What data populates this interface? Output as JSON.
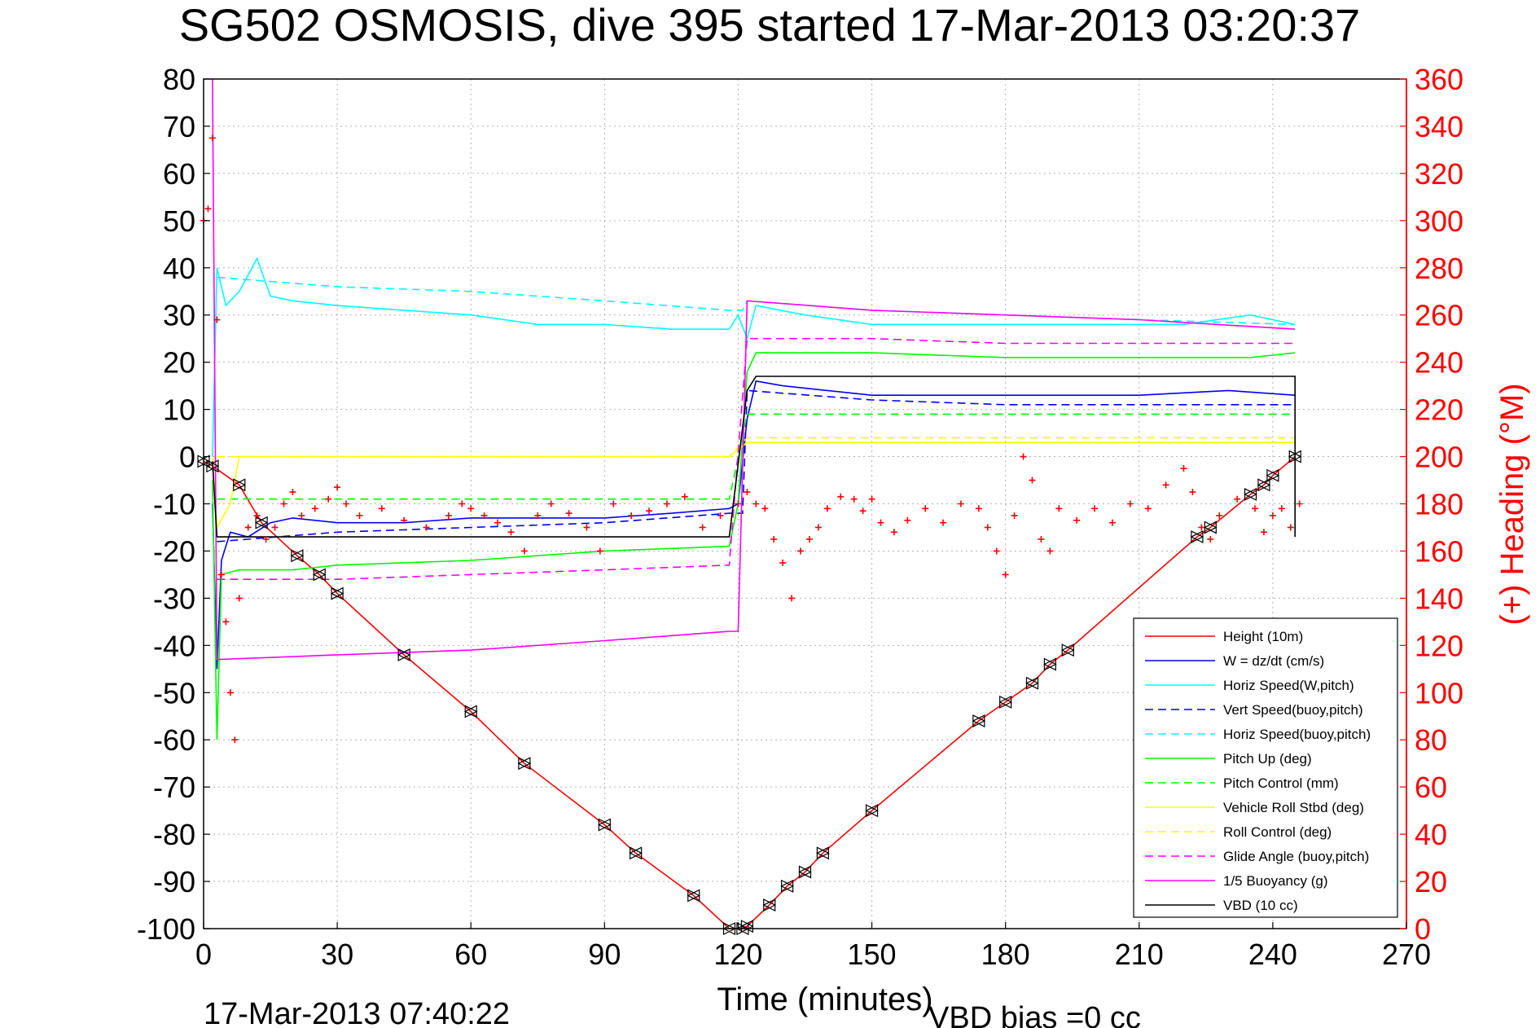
{
  "chart_data": {
    "type": "line",
    "title": "SG502 OSMOSIS, dive 395 started 17-Mar-2013 03:20:37",
    "xlabel": "Time (minutes)",
    "ylabel_right": "(+) Heading (°M)",
    "footer_left": "17-Mar-2013 07:40:22",
    "footer_right": "VBD bias =0 cc",
    "xlim": [
      0,
      270
    ],
    "ylim": [
      -100,
      80
    ],
    "ylim_right": [
      0,
      360
    ],
    "xticks": [
      "0",
      "30",
      "60",
      "90",
      "120",
      "150",
      "180",
      "210",
      "240",
      "270"
    ],
    "yticks": [
      "80",
      "70",
      "60",
      "50",
      "40",
      "30",
      "20",
      "10",
      "0",
      "-10",
      "-20",
      "-30",
      "-40",
      "-50",
      "-60",
      "-70",
      "-80",
      "-90",
      "-100"
    ],
    "yticks_right": [
      "360",
      "340",
      "320",
      "300",
      "280",
      "260",
      "240",
      "220",
      "200",
      "180",
      "160",
      "140",
      "120",
      "100",
      "80",
      "60",
      "40",
      "20",
      "0"
    ],
    "grid": true,
    "legend_position": "bottom-right",
    "legend": [
      {
        "label": "Height (10m)",
        "color": "#ff0000",
        "dash": false
      },
      {
        "label": "W = dz/dt (cm/s)",
        "color": "#0000ff",
        "dash": false
      },
      {
        "label": "Horiz Speed(W,pitch)",
        "color": "#00ffff",
        "dash": false
      },
      {
        "label": "Vert Speed(buoy,pitch)",
        "color": "#0000ff",
        "dash": true
      },
      {
        "label": "Horiz Speed(buoy,pitch)",
        "color": "#00ffff",
        "dash": true
      },
      {
        "label": "Pitch Up (deg)",
        "color": "#00ff00",
        "dash": false
      },
      {
        "label": "Pitch Control (mm)",
        "color": "#00ff00",
        "dash": true
      },
      {
        "label": "Vehicle Roll Stbd (deg)",
        "color": "#ffff00",
        "dash": false
      },
      {
        "label": "Roll Control (deg)",
        "color": "#ffff00",
        "dash": true
      },
      {
        "label": "Glide Angle (buoy,pitch)",
        "color": "#ff00ff",
        "dash": true
      },
      {
        "label": "1/5 Buoyancy (g)",
        "color": "#ff00ff",
        "dash": false
      },
      {
        "label": "VBD (10 cc)",
        "color": "#000000",
        "dash": false
      }
    ],
    "series": [
      {
        "name": "Height (10m)",
        "color": "#ff0000",
        "points": [
          [
            0,
            -1
          ],
          [
            2,
            -2
          ],
          [
            8,
            -6
          ],
          [
            13,
            -14
          ],
          [
            21,
            -21
          ],
          [
            26,
            -25
          ],
          [
            30,
            -29
          ],
          [
            45,
            -42
          ],
          [
            60,
            -54
          ],
          [
            72,
            -65
          ],
          [
            90,
            -78
          ],
          [
            97,
            -84
          ],
          [
            110,
            -93
          ],
          [
            118,
            -100
          ],
          [
            121,
            -100
          ],
          [
            122,
            -99.5
          ],
          [
            127,
            -95
          ],
          [
            131,
            -91
          ],
          [
            135,
            -88
          ],
          [
            139,
            -84
          ],
          [
            150,
            -75
          ],
          [
            174,
            -56
          ],
          [
            180,
            -52
          ],
          [
            186,
            -48
          ],
          [
            190,
            -44
          ],
          [
            194,
            -41
          ],
          [
            223,
            -17
          ],
          [
            226,
            -15
          ],
          [
            235,
            -8
          ],
          [
            238,
            -6
          ],
          [
            240,
            -4
          ],
          [
            245,
            0
          ]
        ]
      },
      {
        "name": "W = dz/dt (cm/s)",
        "color": "#0000ff",
        "points": [
          [
            2,
            -10
          ],
          [
            3,
            -45
          ],
          [
            4,
            -22
          ],
          [
            6,
            -16
          ],
          [
            10,
            -17
          ],
          [
            15,
            -14
          ],
          [
            20,
            -13
          ],
          [
            30,
            -14
          ],
          [
            45,
            -14
          ],
          [
            60,
            -13
          ],
          [
            75,
            -13
          ],
          [
            90,
            -13
          ],
          [
            105,
            -12
          ],
          [
            118,
            -11
          ],
          [
            120,
            -10
          ],
          [
            122,
            8
          ],
          [
            124,
            16
          ],
          [
            130,
            15
          ],
          [
            150,
            13
          ],
          [
            180,
            13
          ],
          [
            210,
            13
          ],
          [
            230,
            14
          ],
          [
            245,
            13
          ]
        ]
      },
      {
        "name": "Horiz Speed(W,pitch)",
        "color": "#00ffff",
        "points": [
          [
            2,
            0
          ],
          [
            3,
            40
          ],
          [
            5,
            32
          ],
          [
            8,
            35
          ],
          [
            12,
            42
          ],
          [
            15,
            34
          ],
          [
            20,
            33
          ],
          [
            30,
            32
          ],
          [
            45,
            31
          ],
          [
            60,
            30
          ],
          [
            75,
            28
          ],
          [
            90,
            28
          ],
          [
            105,
            27
          ],
          [
            118,
            27
          ],
          [
            120,
            30
          ],
          [
            122,
            25
          ],
          [
            124,
            32
          ],
          [
            135,
            30
          ],
          [
            150,
            28
          ],
          [
            180,
            28
          ],
          [
            200,
            28
          ],
          [
            220,
            28
          ],
          [
            235,
            30
          ],
          [
            245,
            28
          ]
        ]
      },
      {
        "name": "Vert Speed(buoy,pitch)",
        "color": "#0000ff",
        "dash": true,
        "points": [
          [
            3,
            -18
          ],
          [
            30,
            -16
          ],
          [
            60,
            -15
          ],
          [
            90,
            -14
          ],
          [
            118,
            -12
          ],
          [
            121,
            -12
          ],
          [
            122,
            14
          ],
          [
            150,
            12
          ],
          [
            180,
            11
          ],
          [
            210,
            11
          ],
          [
            245,
            11
          ]
        ]
      },
      {
        "name": "Horiz Speed(buoy,pitch)",
        "color": "#00ffff",
        "dash": true,
        "points": [
          [
            3,
            38
          ],
          [
            30,
            36
          ],
          [
            60,
            35
          ],
          [
            90,
            33
          ],
          [
            118,
            31
          ],
          [
            121,
            31
          ],
          [
            122,
            33
          ],
          [
            150,
            31
          ],
          [
            180,
            30
          ],
          [
            210,
            29
          ],
          [
            245,
            28
          ]
        ]
      },
      {
        "name": "Pitch Up (deg)",
        "color": "#00ff00",
        "points": [
          [
            2,
            -5
          ],
          [
            3,
            -60
          ],
          [
            4,
            -25
          ],
          [
            8,
            -24
          ],
          [
            20,
            -24
          ],
          [
            30,
            -23
          ],
          [
            60,
            -22
          ],
          [
            90,
            -20
          ],
          [
            118,
            -19
          ],
          [
            120,
            -10
          ],
          [
            122,
            18
          ],
          [
            124,
            22
          ],
          [
            150,
            22
          ],
          [
            180,
            21
          ],
          [
            210,
            21
          ],
          [
            235,
            21
          ],
          [
            245,
            22
          ]
        ]
      },
      {
        "name": "Pitch Control (mm)",
        "color": "#00ff00",
        "dash": true,
        "points": [
          [
            3,
            -9
          ],
          [
            30,
            -9
          ],
          [
            60,
            -9
          ],
          [
            90,
            -9
          ],
          [
            118,
            -9
          ],
          [
            122,
            9
          ],
          [
            150,
            9
          ],
          [
            180,
            9
          ],
          [
            210,
            9
          ],
          [
            245,
            9
          ]
        ]
      },
      {
        "name": "Vehicle Roll Stbd (deg)",
        "color": "#ffff00",
        "points": [
          [
            2,
            0
          ],
          [
            3,
            -15
          ],
          [
            6,
            -10
          ],
          [
            8,
            0
          ],
          [
            20,
            0
          ],
          [
            40,
            0
          ],
          [
            60,
            0
          ],
          [
            90,
            0
          ],
          [
            118,
            0
          ],
          [
            122,
            3
          ],
          [
            150,
            3
          ],
          [
            180,
            3
          ],
          [
            210,
            3
          ],
          [
            245,
            3
          ]
        ]
      },
      {
        "name": "Roll Control (deg)",
        "color": "#ffff00",
        "dash": true,
        "points": [
          [
            3,
            0
          ],
          [
            118,
            0
          ],
          [
            122,
            4
          ],
          [
            245,
            4
          ]
        ]
      },
      {
        "name": "Glide Angle (buoy,pitch)",
        "color": "#ff00ff",
        "dash": true,
        "points": [
          [
            3,
            -26
          ],
          [
            30,
            -26
          ],
          [
            60,
            -25
          ],
          [
            90,
            -24
          ],
          [
            118,
            -23
          ],
          [
            122,
            25
          ],
          [
            150,
            25
          ],
          [
            180,
            24
          ],
          [
            210,
            24
          ],
          [
            245,
            24
          ]
        ]
      },
      {
        "name": "1/5 Buoyancy (g)",
        "color": "#ff00ff",
        "points": [
          [
            2,
            80
          ],
          [
            3,
            -43
          ],
          [
            30,
            -42
          ],
          [
            60,
            -41
          ],
          [
            90,
            -39
          ],
          [
            118,
            -37
          ],
          [
            120,
            -37
          ],
          [
            122,
            33
          ],
          [
            150,
            31
          ],
          [
            180,
            30
          ],
          [
            210,
            29
          ],
          [
            245,
            27
          ]
        ]
      },
      {
        "name": "VBD (10 cc)",
        "color": "#000000",
        "points": [
          [
            2,
            -1
          ],
          [
            3,
            -17
          ],
          [
            118,
            -17
          ],
          [
            122,
            14
          ],
          [
            124,
            17
          ],
          [
            245,
            17
          ],
          [
            245,
            -17
          ]
        ]
      }
    ],
    "heading_points": [
      [
        0,
        300
      ],
      [
        1,
        305
      ],
      [
        2,
        335
      ],
      [
        3,
        258
      ],
      [
        4,
        150
      ],
      [
        5,
        130
      ],
      [
        6,
        100
      ],
      [
        7,
        80
      ],
      [
        8,
        140
      ],
      [
        10,
        170
      ],
      [
        12,
        175
      ],
      [
        14,
        165
      ],
      [
        16,
        170
      ],
      [
        18,
        180
      ],
      [
        20,
        185
      ],
      [
        22,
        175
      ],
      [
        25,
        178
      ],
      [
        28,
        182
      ],
      [
        30,
        187
      ],
      [
        32,
        180
      ],
      [
        35,
        175
      ],
      [
        40,
        178
      ],
      [
        45,
        173
      ],
      [
        50,
        170
      ],
      [
        55,
        175
      ],
      [
        58,
        180
      ],
      [
        60,
        178
      ],
      [
        63,
        175
      ],
      [
        66,
        172
      ],
      [
        69,
        168
      ],
      [
        72,
        160
      ],
      [
        75,
        175
      ],
      [
        78,
        180
      ],
      [
        82,
        176
      ],
      [
        86,
        170
      ],
      [
        89,
        160
      ],
      [
        92,
        180
      ],
      [
        96,
        175
      ],
      [
        100,
        177
      ],
      [
        104,
        180
      ],
      [
        108,
        183
      ],
      [
        112,
        170
      ],
      [
        116,
        175
      ],
      [
        120,
        180
      ],
      [
        122,
        185
      ],
      [
        124,
        180
      ],
      [
        126,
        178
      ],
      [
        128,
        165
      ],
      [
        130,
        155
      ],
      [
        132,
        140
      ],
      [
        134,
        160
      ],
      [
        136,
        165
      ],
      [
        138,
        170
      ],
      [
        140,
        178
      ],
      [
        143,
        183
      ],
      [
        146,
        182
      ],
      [
        148,
        177
      ],
      [
        150,
        182
      ],
      [
        152,
        172
      ],
      [
        155,
        168
      ],
      [
        158,
        173
      ],
      [
        162,
        178
      ],
      [
        166,
        172
      ],
      [
        170,
        180
      ],
      [
        174,
        178
      ],
      [
        176,
        170
      ],
      [
        178,
        160
      ],
      [
        180,
        150
      ],
      [
        182,
        175
      ],
      [
        184,
        200
      ],
      [
        186,
        190
      ],
      [
        188,
        165
      ],
      [
        190,
        160
      ],
      [
        192,
        178
      ],
      [
        196,
        173
      ],
      [
        200,
        178
      ],
      [
        204,
        172
      ],
      [
        208,
        180
      ],
      [
        212,
        178
      ],
      [
        216,
        188
      ],
      [
        220,
        195
      ],
      [
        222,
        185
      ],
      [
        224,
        170
      ],
      [
        226,
        165
      ],
      [
        228,
        175
      ],
      [
        232,
        182
      ],
      [
        236,
        178
      ],
      [
        238,
        168
      ],
      [
        240,
        175
      ],
      [
        242,
        178
      ],
      [
        244,
        170
      ],
      [
        246,
        180
      ]
    ]
  }
}
